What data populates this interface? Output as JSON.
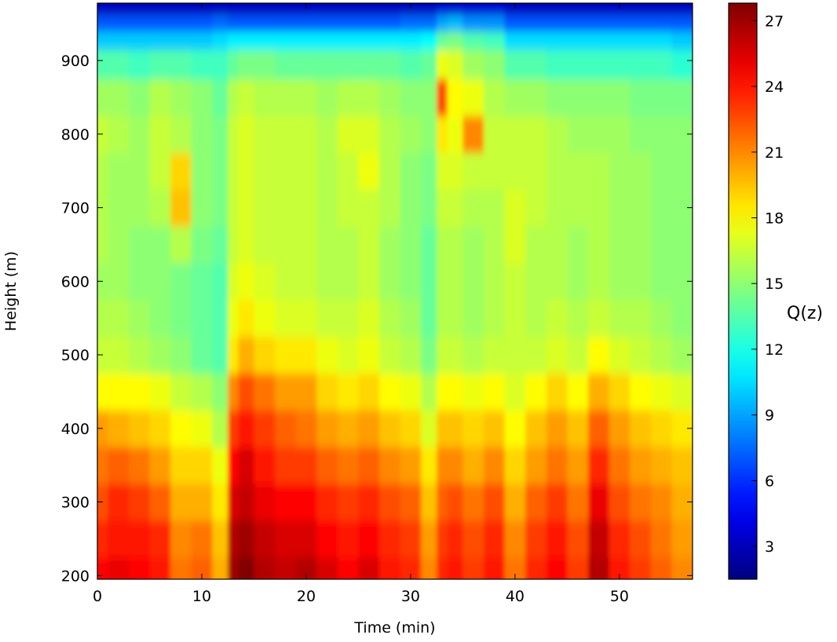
{
  "chart_data": {
    "type": "heatmap",
    "xlabel": "Time (min)",
    "ylabel": "Height (m)",
    "colorbar_label": "Q(z)",
    "colormap": "jet",
    "xlim": [
      0,
      57
    ],
    "ylim": [
      195,
      978
    ],
    "clim": [
      1.5,
      27.8
    ],
    "x_ticks": [
      0,
      10,
      20,
      30,
      40,
      50
    ],
    "y_ticks": [
      200,
      300,
      400,
      500,
      600,
      700,
      800,
      900
    ],
    "colorbar_ticks": [
      3,
      6,
      9,
      12,
      15,
      18,
      21,
      24,
      27
    ],
    "heights": [
      200,
      250,
      300,
      350,
      400,
      450,
      500,
      550,
      600,
      650,
      700,
      750,
      800,
      850,
      900,
      930,
      950,
      975
    ],
    "times": [
      0,
      2,
      4,
      6,
      8,
      10,
      12,
      13,
      14,
      16,
      18,
      20,
      22,
      24,
      26,
      28,
      30,
      32,
      33,
      34,
      36,
      38,
      40,
      42,
      44,
      46,
      48,
      50,
      52,
      54,
      56
    ],
    "values_by_time": [
      [
        24.5,
        23.5,
        22.5,
        21.5,
        20.5,
        18.0,
        16.5,
        16.0,
        15.5,
        16.0,
        16.0,
        16.0,
        16.5,
        15.5,
        13.5,
        10.0,
        7.0,
        3.0
      ],
      [
        25.0,
        24.0,
        23.5,
        22.0,
        20.0,
        18.0,
        16.5,
        16.0,
        15.5,
        15.5,
        15.5,
        15.5,
        16.0,
        15.5,
        13.5,
        10.0,
        7.0,
        3.0
      ],
      [
        24.5,
        24.0,
        23.0,
        21.5,
        19.5,
        18.0,
        16.0,
        15.5,
        15.0,
        15.0,
        15.5,
        15.5,
        15.5,
        15.0,
        13.0,
        10.0,
        7.0,
        3.0
      ],
      [
        24.0,
        23.5,
        22.0,
        20.5,
        19.0,
        17.5,
        15.5,
        15.0,
        15.0,
        15.0,
        16.0,
        16.5,
        16.5,
        16.0,
        13.5,
        10.0,
        7.0,
        3.0
      ],
      [
        21.5,
        21.0,
        20.0,
        19.0,
        18.0,
        16.5,
        15.0,
        14.5,
        14.5,
        16.0,
        19.5,
        19.0,
        16.0,
        15.5,
        13.5,
        10.0,
        7.0,
        3.0
      ],
      [
        22.0,
        21.5,
        20.0,
        19.0,
        17.5,
        16.0,
        14.0,
        14.0,
        14.0,
        14.5,
        15.0,
        15.0,
        15.0,
        15.0,
        13.0,
        10.0,
        7.0,
        3.0
      ],
      [
        20.0,
        19.5,
        18.5,
        17.5,
        16.0,
        15.0,
        13.5,
        13.5,
        13.5,
        14.0,
        14.5,
        14.5,
        14.5,
        14.0,
        13.0,
        10.5,
        7.5,
        3.0
      ],
      [
        27.0,
        26.5,
        25.5,
        24.5,
        23.0,
        21.0,
        18.5,
        17.5,
        17.0,
        16.5,
        16.5,
        16.5,
        16.5,
        16.0,
        14.0,
        11.0,
        7.0,
        3.0
      ],
      [
        27.8,
        27.0,
        26.0,
        25.5,
        24.0,
        22.5,
        20.0,
        18.5,
        17.5,
        17.0,
        17.0,
        17.0,
        17.0,
        16.5,
        14.5,
        11.0,
        7.0,
        3.0
      ],
      [
        26.5,
        26.0,
        25.0,
        24.0,
        23.0,
        21.5,
        19.0,
        17.5,
        17.0,
        16.5,
        16.5,
        16.5,
        16.5,
        16.0,
        14.5,
        11.0,
        7.0,
        3.0
      ],
      [
        26.0,
        25.5,
        24.5,
        23.0,
        22.0,
        20.5,
        18.5,
        17.0,
        16.5,
        16.5,
        16.5,
        16.5,
        16.5,
        16.0,
        14.0,
        11.0,
        7.0,
        3.0
      ],
      [
        26.5,
        25.5,
        24.5,
        23.0,
        21.5,
        20.5,
        18.5,
        17.0,
        16.5,
        16.5,
        16.5,
        16.5,
        16.5,
        16.0,
        14.0,
        11.0,
        7.0,
        3.0
      ],
      [
        25.5,
        24.5,
        23.5,
        22.0,
        20.5,
        19.0,
        17.5,
        16.5,
        16.0,
        16.0,
        16.0,
        16.0,
        16.0,
        15.5,
        14.0,
        11.0,
        7.0,
        3.0
      ],
      [
        24.5,
        24.0,
        23.0,
        21.5,
        20.0,
        18.5,
        17.0,
        16.5,
        16.0,
        16.0,
        16.5,
        16.5,
        17.0,
        16.0,
        14.0,
        11.0,
        7.0,
        3.0
      ],
      [
        25.5,
        24.5,
        23.5,
        22.0,
        20.5,
        19.0,
        17.5,
        17.0,
        16.5,
        16.5,
        16.5,
        17.5,
        17.0,
        16.0,
        14.0,
        11.0,
        7.0,
        3.0
      ],
      [
        24.0,
        23.5,
        22.5,
        21.0,
        19.5,
        18.0,
        16.5,
        16.0,
        15.5,
        15.5,
        16.0,
        16.0,
        16.0,
        15.5,
        14.0,
        11.0,
        7.0,
        3.0
      ],
      [
        23.5,
        23.0,
        22.0,
        20.5,
        19.0,
        17.5,
        16.0,
        15.5,
        15.0,
        15.0,
        15.0,
        15.0,
        15.5,
        15.0,
        13.5,
        11.0,
        7.5,
        3.0
      ],
      [
        21.0,
        20.5,
        19.5,
        18.5,
        17.0,
        16.0,
        14.5,
        14.0,
        14.0,
        14.0,
        14.5,
        14.5,
        15.0,
        15.0,
        14.0,
        11.5,
        7.5,
        3.0
      ],
      [
        23.5,
        23.0,
        22.0,
        21.0,
        19.5,
        18.0,
        16.5,
        16.0,
        16.0,
        16.0,
        16.5,
        17.0,
        18.5,
        22.5,
        17.5,
        14.0,
        9.0,
        3.5
      ],
      [
        24.0,
        23.5,
        22.5,
        21.0,
        19.5,
        18.0,
        16.5,
        16.0,
        16.0,
        16.0,
        16.5,
        17.0,
        17.5,
        18.0,
        17.0,
        14.5,
        9.5,
        3.5
      ],
      [
        23.0,
        22.5,
        21.5,
        20.0,
        19.0,
        17.5,
        16.0,
        15.5,
        15.5,
        15.5,
        16.0,
        16.5,
        21.0,
        17.5,
        15.5,
        13.5,
        8.5,
        3.5
      ],
      [
        24.0,
        23.5,
        22.5,
        21.0,
        19.5,
        18.0,
        16.5,
        16.0,
        16.0,
        16.0,
        16.0,
        16.5,
        16.5,
        16.0,
        15.0,
        13.0,
        8.5,
        3.5
      ],
      [
        21.5,
        21.0,
        20.0,
        19.0,
        18.0,
        17.0,
        16.5,
        16.5,
        16.5,
        17.0,
        17.0,
        16.5,
        16.5,
        15.5,
        13.5,
        10.5,
        7.0,
        3.0
      ],
      [
        23.5,
        23.0,
        22.0,
        20.5,
        19.5,
        18.0,
        16.5,
        16.0,
        16.0,
        16.0,
        16.5,
        16.5,
        16.5,
        15.5,
        13.5,
        10.5,
        7.0,
        3.0
      ],
      [
        24.5,
        24.0,
        23.0,
        21.5,
        20.5,
        19.0,
        17.0,
        16.5,
        16.0,
        16.0,
        16.0,
        16.0,
        16.0,
        15.0,
        13.0,
        10.5,
        7.0,
        3.0
      ],
      [
        23.0,
        22.5,
        21.5,
        20.5,
        19.5,
        18.0,
        16.5,
        16.0,
        15.5,
        15.5,
        16.0,
        16.0,
        15.5,
        15.0,
        13.0,
        10.5,
        7.0,
        3.0
      ],
      [
        26.5,
        26.0,
        25.0,
        23.5,
        22.0,
        20.0,
        18.0,
        16.5,
        16.0,
        16.0,
        16.0,
        16.0,
        15.5,
        15.0,
        13.0,
        10.5,
        7.0,
        3.0
      ],
      [
        24.0,
        23.5,
        22.5,
        21.5,
        20.5,
        19.0,
        17.0,
        16.0,
        15.5,
        15.5,
        15.5,
        15.5,
        15.5,
        15.0,
        13.0,
        10.5,
        7.0,
        3.0
      ],
      [
        23.0,
        22.5,
        21.5,
        20.5,
        19.5,
        18.0,
        16.5,
        16.0,
        15.5,
        15.5,
        15.5,
        15.5,
        15.0,
        14.5,
        13.0,
        10.5,
        7.0,
        3.0
      ],
      [
        22.0,
        21.5,
        21.0,
        20.0,
        19.0,
        17.5,
        16.0,
        15.5,
        15.0,
        15.0,
        15.0,
        15.0,
        15.0,
        14.5,
        13.0,
        10.5,
        7.0,
        3.0
      ],
      [
        21.0,
        20.5,
        20.0,
        19.5,
        18.5,
        17.0,
        15.5,
        15.0,
        15.0,
        15.0,
        15.0,
        15.0,
        15.0,
        14.5,
        12.5,
        10.0,
        7.0,
        3.0
      ]
    ]
  }
}
